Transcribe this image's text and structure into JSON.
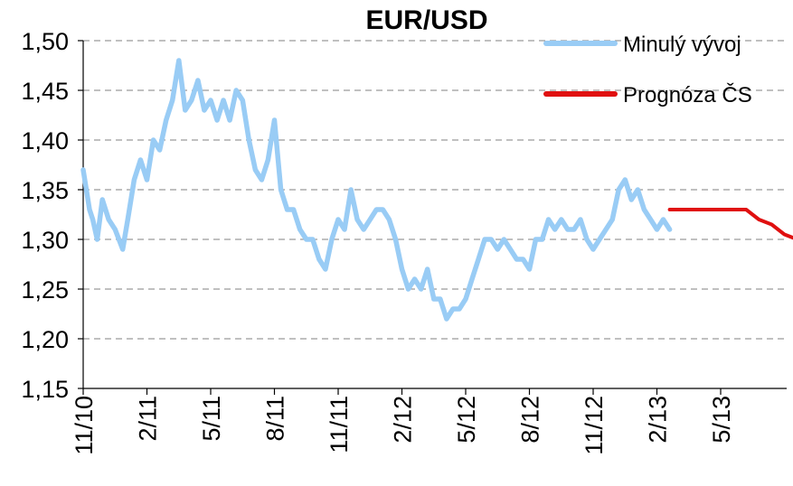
{
  "chart_data": {
    "type": "line",
    "title": "EUR/USD",
    "xlabel": "",
    "ylabel": "",
    "ylim": [
      1.15,
      1.5
    ],
    "yticks": [
      "1,50",
      "1,45",
      "1,40",
      "1,35",
      "1,30",
      "1,25",
      "1,20",
      "1,15"
    ],
    "xticks": [
      "11/10",
      "2/11",
      "5/11",
      "8/11",
      "11/11",
      "2/12",
      "5/12",
      "8/12",
      "11/12",
      "2/13",
      "5/13"
    ],
    "grid": true,
    "legend_position": "top-right",
    "colors": {
      "history": "#99CCF5",
      "forecast": "#E01010"
    },
    "series": [
      {
        "name": "Minulý vývoj",
        "x": [
          0,
          0.1,
          0.15,
          0.22,
          0.3,
          0.4,
          0.5,
          0.62,
          0.7,
          0.8,
          0.9,
          1.0,
          1.1,
          1.2,
          1.3,
          1.4,
          1.5,
          1.6,
          1.7,
          1.8,
          1.9,
          2.0,
          2.1,
          2.2,
          2.3,
          2.4,
          2.5,
          2.6,
          2.7,
          2.8,
          2.9,
          3.0,
          3.1,
          3.2,
          3.3,
          3.4,
          3.5,
          3.6,
          3.7,
          3.8,
          3.9,
          4.0,
          4.1,
          4.2,
          4.3,
          4.4,
          4.5,
          4.6,
          4.7,
          4.8,
          4.9,
          5.0,
          5.1,
          5.2,
          5.3,
          5.4,
          5.5,
          5.6,
          5.7,
          5.8,
          5.9,
          6.0,
          6.1,
          6.2,
          6.3,
          6.4,
          6.5,
          6.6,
          6.7,
          6.8,
          6.9,
          7.0,
          7.1,
          7.2,
          7.3,
          7.4,
          7.5,
          7.6,
          7.7,
          7.8,
          7.9,
          8.0,
          8.1,
          8.2,
          8.3,
          8.4,
          8.5,
          8.6,
          8.7,
          8.8,
          8.9,
          9.0,
          9.1,
          9.2
        ],
        "values": [
          1.37,
          1.33,
          1.32,
          1.3,
          1.34,
          1.32,
          1.31,
          1.29,
          1.32,
          1.36,
          1.38,
          1.36,
          1.4,
          1.39,
          1.42,
          1.44,
          1.48,
          1.43,
          1.44,
          1.46,
          1.43,
          1.44,
          1.42,
          1.44,
          1.42,
          1.45,
          1.44,
          1.4,
          1.37,
          1.36,
          1.38,
          1.42,
          1.35,
          1.33,
          1.33,
          1.31,
          1.3,
          1.3,
          1.28,
          1.27,
          1.3,
          1.32,
          1.31,
          1.35,
          1.32,
          1.31,
          1.32,
          1.33,
          1.33,
          1.32,
          1.3,
          1.27,
          1.25,
          1.26,
          1.25,
          1.27,
          1.24,
          1.24,
          1.22,
          1.23,
          1.23,
          1.24,
          1.26,
          1.28,
          1.3,
          1.3,
          1.29,
          1.3,
          1.29,
          1.28,
          1.28,
          1.27,
          1.3,
          1.3,
          1.32,
          1.31,
          1.32,
          1.31,
          1.31,
          1.32,
          1.3,
          1.29,
          1.3,
          1.31,
          1.32,
          1.35,
          1.36,
          1.34,
          1.35,
          1.33,
          1.32,
          1.31,
          1.32,
          1.31
        ]
      },
      {
        "name": "Prognóza ČS",
        "x": [
          9.2,
          9.7,
          10.2,
          10.4,
          10.6,
          10.8,
          11.0,
          11.2
        ],
        "values": [
          1.33,
          1.33,
          1.33,
          1.33,
          1.32,
          1.315,
          1.305,
          1.3
        ]
      }
    ]
  }
}
